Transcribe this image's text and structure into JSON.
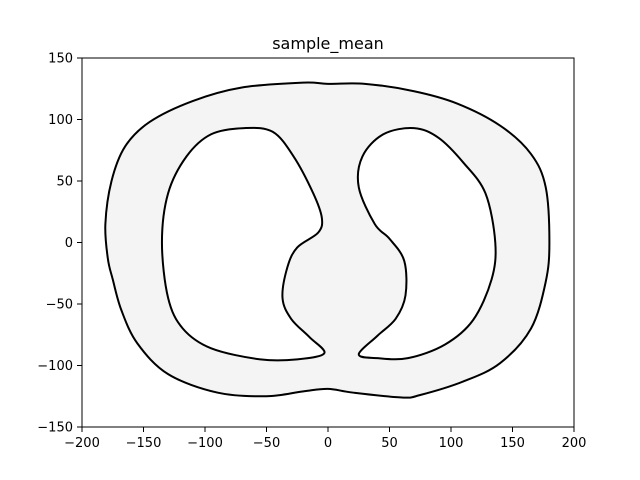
{
  "chart_data": {
    "type": "line",
    "title": "sample_mean",
    "xlabel": "",
    "ylabel": "",
    "xlim": [
      -200,
      200
    ],
    "ylim": [
      -150,
      150
    ],
    "xticks": [
      -200,
      -150,
      -100,
      -50,
      0,
      50,
      100,
      150,
      200
    ],
    "xtick_labels": [
      "−200",
      "−150",
      "−100",
      "−50",
      "0",
      "50",
      "100",
      "150",
      "200"
    ],
    "yticks": [
      -150,
      -100,
      -50,
      0,
      50,
      100,
      150
    ],
    "ytick_labels": [
      "−150",
      "−100",
      "−50",
      "0",
      "50",
      "100",
      "150"
    ],
    "grid": false,
    "fill_color": "#f4f4f4",
    "line_color": "#000000",
    "series": [
      {
        "points": [
          [
            -179,
            -13
          ],
          [
            -181,
            15
          ],
          [
            -176,
            50
          ],
          [
            -165,
            78
          ],
          [
            -145,
            98
          ],
          [
            -110,
            115
          ],
          [
            -70,
            126
          ],
          [
            -20,
            130
          ],
          [
            0,
            129
          ],
          [
            30,
            129
          ],
          [
            70,
            123
          ],
          [
            105,
            113
          ],
          [
            140,
            95
          ],
          [
            165,
            72
          ],
          [
            177,
            45
          ],
          [
            180,
            0
          ],
          [
            177,
            -32
          ],
          [
            165,
            -70
          ],
          [
            140,
            -98
          ],
          [
            110,
            -113
          ],
          [
            75,
            -124
          ],
          [
            60,
            -126
          ],
          [
            20,
            -122
          ],
          [
            0,
            -119
          ],
          [
            -20,
            -121
          ],
          [
            -50,
            -125
          ],
          [
            -90,
            -122
          ],
          [
            -130,
            -107
          ],
          [
            -155,
            -82
          ],
          [
            -168,
            -55
          ],
          [
            -175,
            -30
          ],
          [
            -179,
            -13
          ]
        ]
      },
      {
        "points": [
          [
            -3,
            -90
          ],
          [
            -25,
            -95
          ],
          [
            -55,
            -95
          ],
          [
            -95,
            -86
          ],
          [
            -118,
            -70
          ],
          [
            -130,
            -45
          ],
          [
            -135,
            0
          ],
          [
            -130,
            40
          ],
          [
            -115,
            70
          ],
          [
            -95,
            88
          ],
          [
            -68,
            93
          ],
          [
            -45,
            90
          ],
          [
            -28,
            70
          ],
          [
            -12,
            40
          ],
          [
            -5,
            20
          ],
          [
            -8,
            8
          ],
          [
            -25,
            -4
          ],
          [
            -33,
            -20
          ],
          [
            -37,
            -45
          ],
          [
            -30,
            -62
          ],
          [
            -15,
            -77
          ],
          [
            -3,
            -90
          ]
        ]
      },
      {
        "points": [
          [
            25,
            -91
          ],
          [
            40,
            -76
          ],
          [
            55,
            -62
          ],
          [
            63,
            -43
          ],
          [
            62,
            -15
          ],
          [
            50,
            3
          ],
          [
            38,
            15
          ],
          [
            25,
            45
          ],
          [
            28,
            70
          ],
          [
            45,
            88
          ],
          [
            70,
            93
          ],
          [
            90,
            85
          ],
          [
            110,
            65
          ],
          [
            128,
            40
          ],
          [
            136,
            0
          ],
          [
            133,
            -30
          ],
          [
            118,
            -63
          ],
          [
            95,
            -83
          ],
          [
            65,
            -94
          ],
          [
            40,
            -94
          ],
          [
            25,
            -91
          ]
        ]
      }
    ]
  }
}
